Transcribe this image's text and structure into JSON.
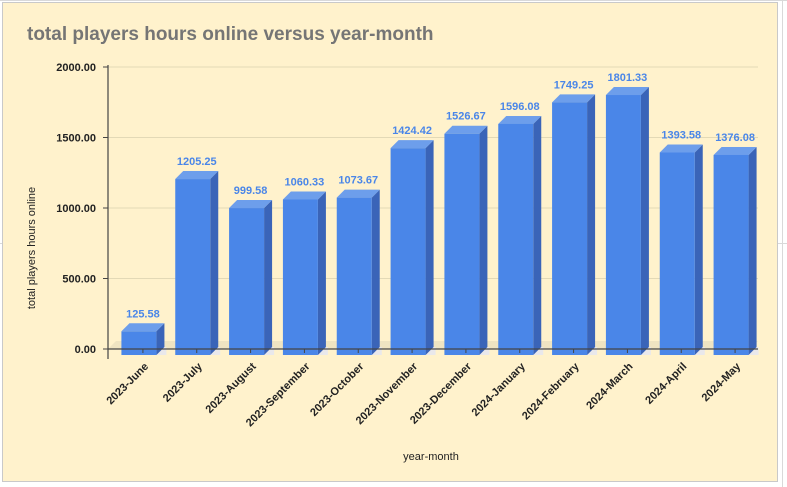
{
  "title": "total players hours online versus year-month",
  "chart_data": {
    "type": "bar",
    "title": "total players hours online versus year-month",
    "xlabel": "year-month",
    "ylabel": "total players hours online",
    "categories": [
      "2023-June",
      "2023-July",
      "2023-August",
      "2023-September",
      "2023-October",
      "2023-November",
      "2023-December",
      "2024-January",
      "2024-February",
      "2024-March",
      "2024-April",
      "2024-May"
    ],
    "values": [
      125.58,
      1205.25,
      999.58,
      1060.33,
      1073.67,
      1424.42,
      1526.67,
      1596.08,
      1749.25,
      1801.33,
      1393.58,
      1376.08
    ],
    "data_labels": [
      "125.58",
      "1205.25",
      "999.58",
      "1060.33",
      "1073.67",
      "1424.42",
      "1526.67",
      "1596.08",
      "1749.25",
      "1801.33",
      "1393.58",
      "1376.08"
    ],
    "yticks": [
      0,
      500,
      1000,
      1500,
      2000
    ],
    "ytick_labels": [
      "0.00",
      "500.00",
      "1000.00",
      "1500.00",
      "2000.00"
    ],
    "ylim": [
      0,
      2000
    ],
    "grid": true,
    "legend": "none",
    "colors": {
      "bar_front": "#4a86e8",
      "bar_top": "#6d9eeb",
      "bar_side": "#3a64b8",
      "grid": "#e3d9b6",
      "background": "#fff2cc"
    }
  }
}
